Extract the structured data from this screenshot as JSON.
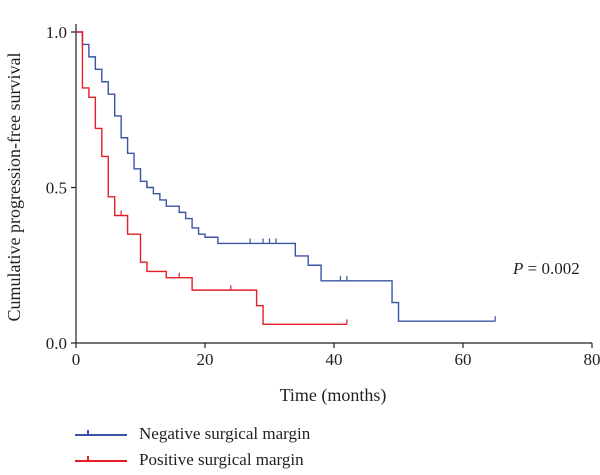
{
  "chart_data": {
    "type": "line",
    "step": true,
    "xlabel": "Time (months)",
    "ylabel": "Cumulative progression-free survival",
    "xlim": [
      0,
      80
    ],
    "ylim": [
      0,
      1
    ],
    "x_ticks": [
      0,
      20,
      40,
      60,
      80
    ],
    "y_ticks": [
      0,
      0.5,
      1
    ],
    "x_tick_labels": [
      "0",
      "20",
      "40",
      "60",
      "80"
    ],
    "y_tick_labels": [
      "0.0",
      "0.5",
      "1.0"
    ],
    "grid": false,
    "legend_position": "bottom-left",
    "annotation": {
      "italic": "P",
      "rest": " = 0.002"
    },
    "series": [
      {
        "name": "Negative surgical margin",
        "color": "#3b55a5",
        "steps": [
          [
            0,
            1.0
          ],
          [
            1,
            0.96
          ],
          [
            2,
            0.92
          ],
          [
            3,
            0.88
          ],
          [
            4,
            0.84
          ],
          [
            5,
            0.8
          ],
          [
            6,
            0.73
          ],
          [
            7,
            0.66
          ],
          [
            8,
            0.61
          ],
          [
            9,
            0.56
          ],
          [
            10,
            0.52
          ],
          [
            11,
            0.5
          ],
          [
            12,
            0.48
          ],
          [
            13,
            0.46
          ],
          [
            14,
            0.44
          ],
          [
            16,
            0.42
          ],
          [
            17,
            0.4
          ],
          [
            18,
            0.37
          ],
          [
            19,
            0.35
          ],
          [
            20,
            0.34
          ],
          [
            22,
            0.32
          ],
          [
            34,
            0.28
          ],
          [
            36,
            0.25
          ],
          [
            38,
            0.2
          ],
          [
            49,
            0.13
          ],
          [
            50,
            0.07
          ],
          [
            65,
            0.07
          ]
        ],
        "censored": [
          [
            11,
            0.5
          ],
          [
            27,
            0.32
          ],
          [
            29,
            0.32
          ],
          [
            30,
            0.32
          ],
          [
            31,
            0.32
          ],
          [
            41,
            0.2
          ],
          [
            42,
            0.2
          ],
          [
            65,
            0.07
          ]
        ]
      },
      {
        "name": "Positive surgical margin",
        "color": "#e41e26",
        "steps": [
          [
            0,
            1.0
          ],
          [
            1,
            0.82
          ],
          [
            2,
            0.79
          ],
          [
            3,
            0.69
          ],
          [
            4,
            0.6
          ],
          [
            5,
            0.47
          ],
          [
            6,
            0.41
          ],
          [
            8,
            0.35
          ],
          [
            10,
            0.26
          ],
          [
            11,
            0.23
          ],
          [
            14,
            0.21
          ],
          [
            18,
            0.17
          ],
          [
            28,
            0.12
          ],
          [
            29,
            0.06
          ],
          [
            42,
            0.06
          ]
        ],
        "censored": [
          [
            7,
            0.41
          ],
          [
            16,
            0.21
          ],
          [
            24,
            0.17
          ],
          [
            42,
            0.06
          ]
        ]
      }
    ]
  }
}
